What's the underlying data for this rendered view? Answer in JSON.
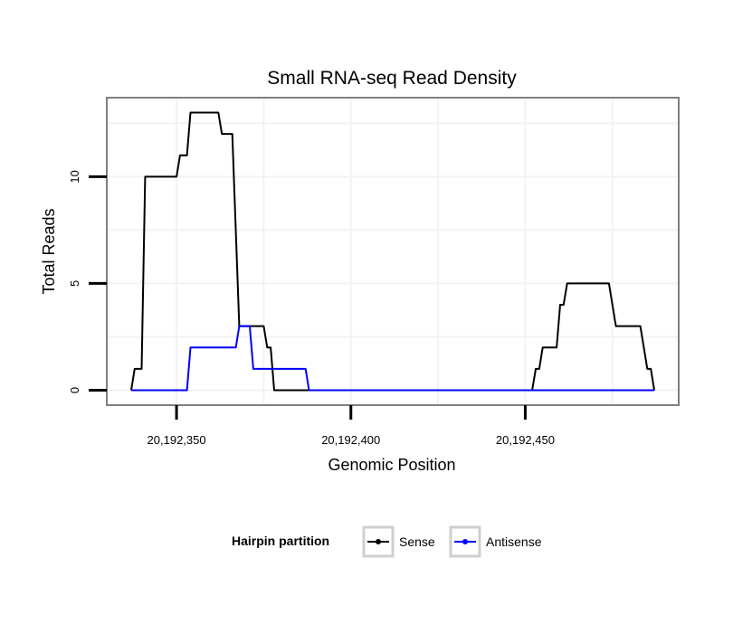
{
  "chart_data": {
    "type": "line",
    "title": "Small RNA-seq Read Density",
    "xlabel": "Genomic Position",
    "ylabel": "Total Reads",
    "xlim": [
      20192330,
      20192494
    ],
    "ylim": [
      -0.7,
      13.7
    ],
    "x_ticks": [
      {
        "value": 20192350,
        "label": "20,192,350"
      },
      {
        "value": 20192400,
        "label": "20,192,400"
      },
      {
        "value": 20192450,
        "label": "20,192,450"
      }
    ],
    "y_ticks": [
      {
        "value": 0,
        "label": "0"
      },
      {
        "value": 5,
        "label": "5"
      },
      {
        "value": 10,
        "label": "10"
      }
    ],
    "grid": true,
    "legend": {
      "title": "Hairpin partition",
      "position": "bottom",
      "entries": [
        "Sense",
        "Antisense"
      ]
    },
    "series": [
      {
        "name": "Sense",
        "color": "#000000",
        "points": [
          [
            20192337,
            0
          ],
          [
            20192338,
            1
          ],
          [
            20192340,
            1
          ],
          [
            20192341,
            10
          ],
          [
            20192350,
            10
          ],
          [
            20192351,
            11
          ],
          [
            20192353,
            11
          ],
          [
            20192354,
            13
          ],
          [
            20192362,
            13
          ],
          [
            20192363,
            12
          ],
          [
            20192366,
            12
          ],
          [
            20192368,
            3
          ],
          [
            20192375,
            3
          ],
          [
            20192376,
            2
          ],
          [
            20192377,
            2
          ],
          [
            20192378,
            0
          ],
          [
            20192452,
            0
          ],
          [
            20192453,
            1
          ],
          [
            20192454,
            1
          ],
          [
            20192455,
            2
          ],
          [
            20192459,
            2
          ],
          [
            20192460,
            4
          ],
          [
            20192461,
            4
          ],
          [
            20192462,
            5
          ],
          [
            20192474,
            5
          ],
          [
            20192476,
            3
          ],
          [
            20192483,
            3
          ],
          [
            20192485,
            1
          ],
          [
            20192486,
            1
          ],
          [
            20192487,
            0
          ]
        ]
      },
      {
        "name": "Antisense",
        "color": "#0000ff",
        "points": [
          [
            20192337,
            0
          ],
          [
            20192353,
            0
          ],
          [
            20192354,
            2
          ],
          [
            20192367,
            2
          ],
          [
            20192368,
            3
          ],
          [
            20192371,
            3
          ],
          [
            20192372,
            1
          ],
          [
            20192387,
            1
          ],
          [
            20192388,
            0
          ],
          [
            20192487,
            0
          ]
        ]
      }
    ]
  }
}
